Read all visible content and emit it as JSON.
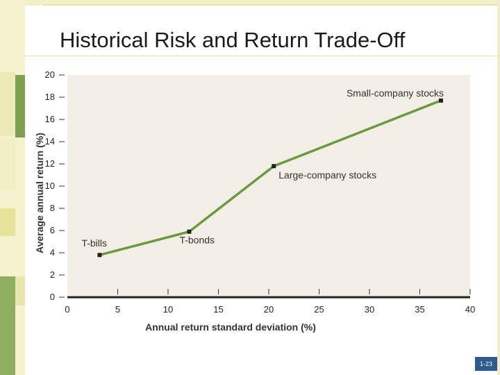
{
  "slide": {
    "title": "Historical Risk and Return Trade-Off",
    "page_number": "1-23"
  },
  "chart_data": {
    "type": "line",
    "title": "",
    "xlabel": "Annual return standard deviation (%)",
    "ylabel": "Average annual return (%)",
    "xlim": [
      0,
      40
    ],
    "ylim": [
      0,
      20
    ],
    "x_ticks": [
      0,
      5,
      10,
      15,
      20,
      25,
      30,
      35,
      40
    ],
    "y_ticks": [
      0,
      2,
      4,
      6,
      8,
      10,
      12,
      14,
      16,
      18,
      20
    ],
    "grid": false,
    "line_color": "#6a9a3e",
    "background_color": "#f3eee6",
    "points": [
      {
        "label": "T-bills",
        "x": 3.2,
        "y": 3.8
      },
      {
        "label": "T-bonds",
        "x": 12.1,
        "y": 5.9
      },
      {
        "label": "Large-company stocks",
        "x": 20.5,
        "y": 11.8
      },
      {
        "label": "Small-company stocks",
        "x": 37.1,
        "y": 17.7
      }
    ]
  }
}
